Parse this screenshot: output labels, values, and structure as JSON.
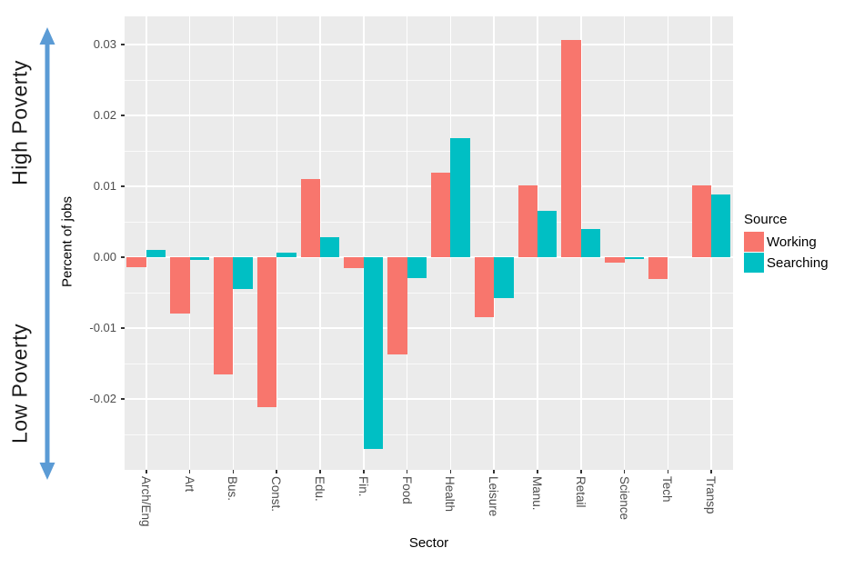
{
  "annotations": {
    "high_poverty": "High Poverty",
    "low_poverty": "Low Poverty",
    "arrow_color": "#5B9BD5"
  },
  "legend": {
    "title": "Source",
    "items": [
      {
        "label": "Working",
        "color": "#F8766D"
      },
      {
        "label": "Searching",
        "color": "#00BFC4"
      }
    ]
  },
  "chart_data": {
    "type": "bar",
    "title": "",
    "xlabel": "Sector",
    "ylabel": "Percent of jobs",
    "categories": [
      "Arch/Eng",
      "Art",
      "Bus.",
      "Const.",
      "Edu.",
      "Fin.",
      "Food",
      "Health",
      "Leisure",
      "Manu.",
      "Retail",
      "Science",
      "Tech",
      "Transp"
    ],
    "series": [
      {
        "name": "Working",
        "color": "#F8766D",
        "values": [
          -0.0014,
          -0.0079,
          -0.0165,
          -0.0212,
          0.011,
          -0.0015,
          -0.0137,
          0.012,
          -0.0084,
          0.0102,
          0.0307,
          -0.0007,
          -0.0031,
          0.0102
        ]
      },
      {
        "name": "Searching",
        "color": "#00BFC4",
        "values": [
          0.001,
          -0.0004,
          -0.0045,
          0.0006,
          0.0028,
          -0.0271,
          -0.0029,
          0.0168,
          -0.0058,
          0.0065,
          0.004,
          -0.0003,
          0.0,
          0.0089
        ]
      }
    ],
    "ylim": [
      -0.03,
      0.034
    ],
    "yticks": [
      0.03,
      0.02,
      0.01,
      0.0,
      -0.01,
      -0.02
    ],
    "ytick_labels": [
      "0.03",
      "0.02",
      "0.01",
      "0.00",
      "-0.01",
      "-0.02"
    ],
    "minor_yticks": [
      0.025,
      0.015,
      0.005,
      -0.005,
      -0.015,
      -0.025
    ],
    "grid": true,
    "legend_position": "right",
    "panel_bg": "#EBEBEB"
  }
}
